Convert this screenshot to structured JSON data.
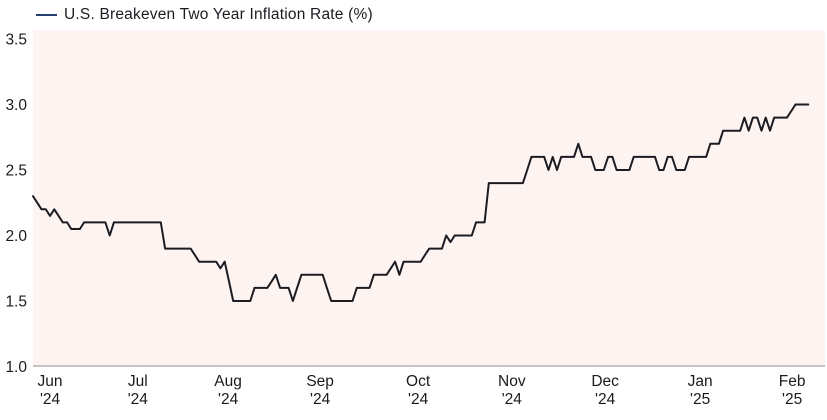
{
  "chart_data": {
    "type": "line",
    "title": "U.S. Breakeven Two Year Inflation Rate (%)",
    "legend_label": "U.S. Breakeven Two Year Inflation Rate (%)",
    "xlabel": "",
    "ylabel": "",
    "unit": "%",
    "ylim": [
      1.0,
      3.5
    ],
    "grid": "off",
    "legend_position": "top-left",
    "y_ticks": [
      {
        "label": "3.5",
        "value": 3.5
      },
      {
        "label": "3.0",
        "value": 3.0
      },
      {
        "label": "2.5",
        "value": 2.5
      },
      {
        "label": "2.0",
        "value": 2.0
      },
      {
        "label": "1.5",
        "value": 1.5
      },
      {
        "label": "1.0",
        "value": 1.0
      }
    ],
    "x_ticks": [
      {
        "line1": "Jun",
        "line2": "'24",
        "day": 4
      },
      {
        "line1": "Jul",
        "line2": "'24",
        "day": 24.6
      },
      {
        "line1": "Aug",
        "line2": "'24",
        "day": 45.8
      },
      {
        "line1": "Sep",
        "line2": "'24",
        "day": 67.4
      },
      {
        "line1": "Oct",
        "line2": "'24",
        "day": 90.4
      },
      {
        "line1": "Nov",
        "line2": "'24",
        "day": 112.4
      },
      {
        "line1": "Dec",
        "line2": "'24",
        "day": 134.3
      },
      {
        "line1": "Jan",
        "line2": "'25",
        "day": 156.6
      },
      {
        "line1": "Feb",
        "line2": "'25",
        "day": 178.2
      }
    ],
    "series_name": "U.S. Breakeven Two Year Inflation Rate (%)",
    "values": [
      2.3,
      2.25,
      2.2,
      2.2,
      2.15,
      2.2,
      2.15,
      2.1,
      2.1,
      2.05,
      2.05,
      2.05,
      2.1,
      2.1,
      2.1,
      2.1,
      2.1,
      2.1,
      2.0,
      2.1,
      2.1,
      2.1,
      2.1,
      2.1,
      2.1,
      2.1,
      2.1,
      2.1,
      2.1,
      2.1,
      2.1,
      1.9,
      1.9,
      1.9,
      1.9,
      1.9,
      1.9,
      1.9,
      1.85,
      1.8,
      1.8,
      1.8,
      1.8,
      1.8,
      1.75,
      1.8,
      1.65,
      1.5,
      1.5,
      1.5,
      1.5,
      1.5,
      1.6,
      1.6,
      1.6,
      1.6,
      1.65,
      1.7,
      1.6,
      1.6,
      1.6,
      1.5,
      1.6,
      1.7,
      1.7,
      1.7,
      1.7,
      1.7,
      1.7,
      1.6,
      1.5,
      1.5,
      1.5,
      1.5,
      1.5,
      1.5,
      1.6,
      1.6,
      1.6,
      1.6,
      1.7,
      1.7,
      1.7,
      1.7,
      1.75,
      1.8,
      1.7,
      1.8,
      1.8,
      1.8,
      1.8,
      1.8,
      1.85,
      1.9,
      1.9,
      1.9,
      1.9,
      2.0,
      1.95,
      2.0,
      2.0,
      2.0,
      2.0,
      2.0,
      2.1,
      2.1,
      2.1,
      2.4,
      2.4,
      2.4,
      2.4,
      2.4,
      2.4,
      2.4,
      2.4,
      2.4,
      2.5,
      2.6,
      2.6,
      2.6,
      2.6,
      2.5,
      2.6,
      2.5,
      2.6,
      2.6,
      2.6,
      2.6,
      2.7,
      2.6,
      2.6,
      2.6,
      2.5,
      2.5,
      2.5,
      2.6,
      2.6,
      2.5,
      2.5,
      2.5,
      2.5,
      2.6,
      2.6,
      2.6,
      2.6,
      2.6,
      2.6,
      2.5,
      2.5,
      2.6,
      2.6,
      2.5,
      2.5,
      2.5,
      2.6,
      2.6,
      2.6,
      2.6,
      2.6,
      2.7,
      2.7,
      2.7,
      2.8,
      2.8,
      2.8,
      2.8,
      2.8,
      2.9,
      2.8,
      2.9,
      2.9,
      2.8,
      2.9,
      2.8,
      2.9,
      2.9,
      2.9,
      2.9,
      2.95,
      3.0,
      3.0,
      3.0,
      3.0
    ]
  },
  "colors": {
    "line": "#1b1b22",
    "legend_dash": "#24406e",
    "plot_background": "#fdf4f2",
    "axis_line": "#b3b0b0",
    "text": "#1b1b1b",
    "page_background": "#ffffff"
  }
}
